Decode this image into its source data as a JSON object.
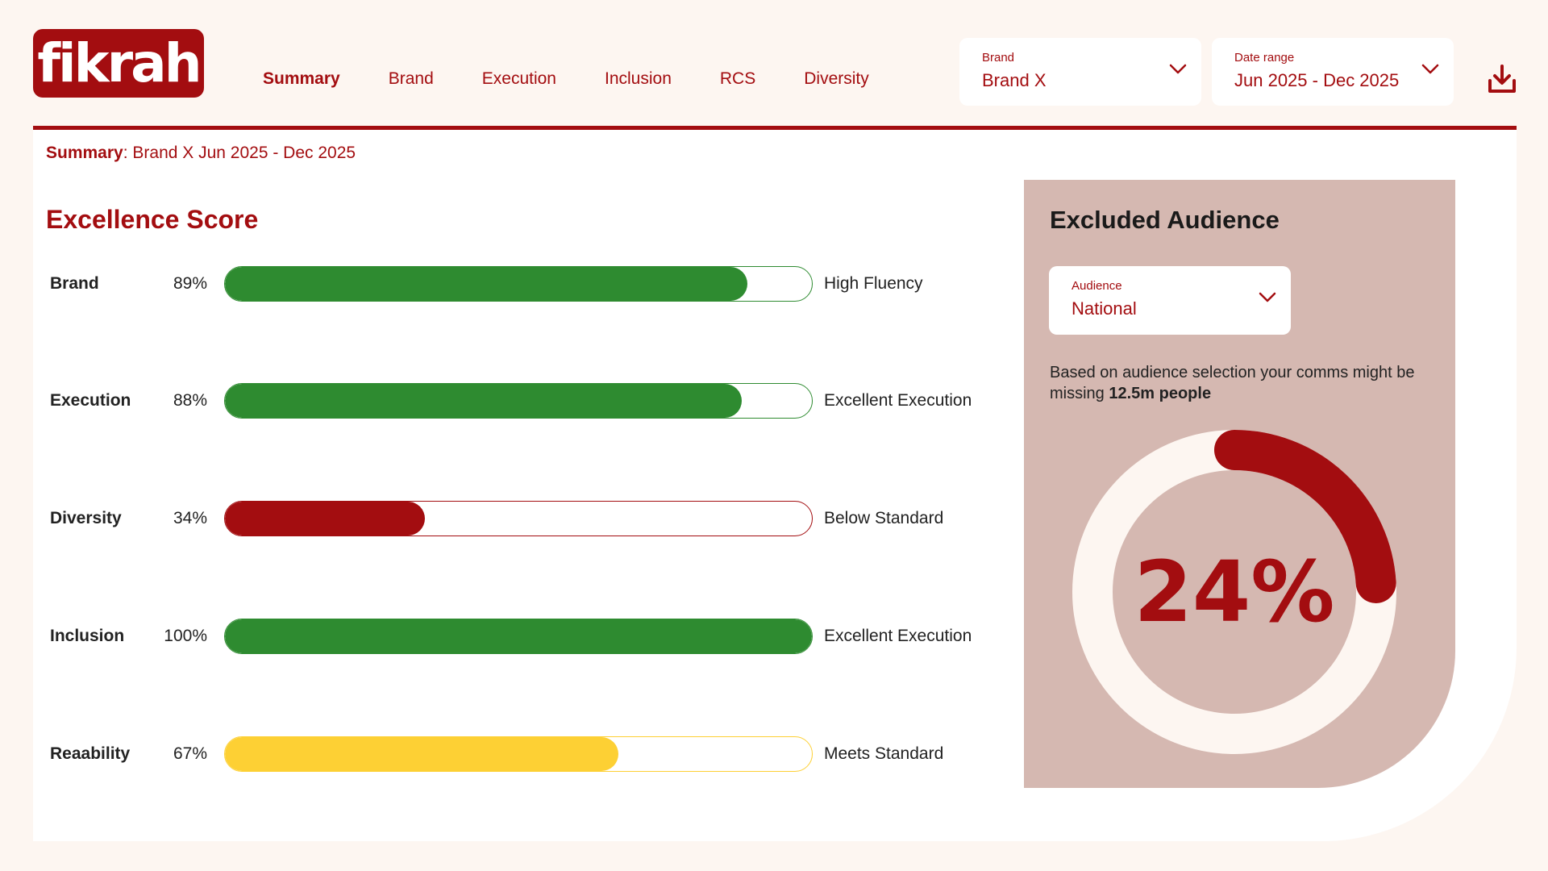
{
  "logo": {
    "text": "fikrah"
  },
  "nav": {
    "items": [
      {
        "label": "Summary",
        "active": true
      },
      {
        "label": "Brand"
      },
      {
        "label": "Execution"
      },
      {
        "label": "Inclusion"
      },
      {
        "label": "RCS"
      },
      {
        "label": "Diversity"
      }
    ]
  },
  "filters": {
    "brand": {
      "label": "Brand",
      "value": "Brand X"
    },
    "date_range": {
      "label": "Date range",
      "value": "Jun 2025 - Dec 2025"
    }
  },
  "icons": {
    "download": "download-icon",
    "chevron": "chevron-down-icon"
  },
  "summary": {
    "prefix": "Summary",
    "text": ": Brand X Jun 2025 - Dec 2025"
  },
  "excellence": {
    "title": "Excellence Score",
    "rows": [
      {
        "name": "Brand",
        "pct_label": "89%",
        "value": 89,
        "status": "High Fluency",
        "color": "#2e8b30"
      },
      {
        "name": "Execution",
        "pct_label": "88%",
        "value": 88,
        "status": "Excellent Execution",
        "color": "#2e8b30"
      },
      {
        "name": "Diversity",
        "pct_label": "34%",
        "value": 34,
        "status": "Below Standard",
        "color": "#a30d10"
      },
      {
        "name": "Inclusion",
        "pct_label": "100%",
        "value": 100,
        "status": "Excellent Execution",
        "color": "#2e8b30"
      },
      {
        "name": "Reaability",
        "pct_label": "67%",
        "value": 67,
        "status": "Meets Standard",
        "color": "#fdd034"
      }
    ]
  },
  "excluded": {
    "title": "Excluded Audience",
    "audience": {
      "label": "Audience",
      "value": "National"
    },
    "text_before": "Based on audience selection your comms might be missing ",
    "text_bold": "12.5m people",
    "value_label": "24%",
    "value": 24
  },
  "colors": {
    "brand_red": "#a30d10",
    "green": "#2e8b30",
    "yellow": "#fdd034",
    "panel": "#d5b8b1",
    "background": "#fdf6f1"
  }
}
